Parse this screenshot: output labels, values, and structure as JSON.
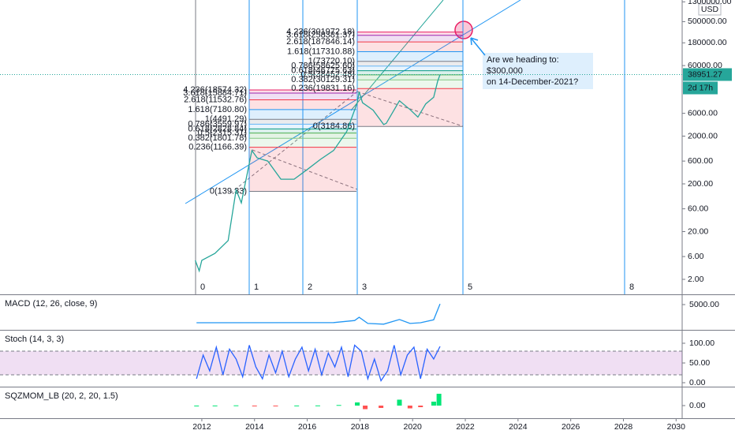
{
  "chart_data": [
    {
      "type": "line",
      "currency": "USD",
      "log_scale": true,
      "color": "#26a69a",
      "x": [
        2011.75,
        2011.9,
        2012.0,
        2012.5,
        2013.0,
        2013.3,
        2013.5,
        2013.9,
        2014.1,
        2014.5,
        2015.0,
        2015.5,
        2016.0,
        2016.5,
        2017.0,
        2017.5,
        2017.9,
        2017.97,
        2018.1,
        2018.5,
        2018.9,
        2019.0,
        2019.5,
        2019.9,
        2020.2,
        2020.5,
        2020.8,
        2020.95,
        2021.04
      ],
      "values": [
        5,
        3,
        5,
        7,
        13,
        150,
        80,
        1000,
        700,
        600,
        250,
        250,
        400,
        650,
        1000,
        2500,
        10000,
        17000,
        10000,
        7000,
        3500,
        3700,
        11000,
        7200,
        5000,
        9500,
        13000,
        28000,
        38951.27
      ],
      "xlim": [
        2004.34,
        2030.23
      ],
      "xticks": [
        2012,
        2014,
        2016,
        2018,
        2020,
        2022,
        2024,
        2026,
        2028,
        2030
      ],
      "ylim": [
        0.97,
        1420000
      ],
      "yticks": [
        {
          "value": 1300000,
          "label": "1300000.00"
        },
        {
          "value": 500000,
          "label": "500000.00"
        },
        {
          "value": 180000,
          "label": "180000.00"
        },
        {
          "value": 60000,
          "label": "60000.00"
        },
        {
          "value": 6000,
          "label": "6000.00"
        },
        {
          "value": 2000,
          "label": "2000.00"
        },
        {
          "value": 600,
          "label": "600.00"
        },
        {
          "value": 200,
          "label": "200.00"
        },
        {
          "value": 60,
          "label": "60.00"
        },
        {
          "value": 20,
          "label": "20.00"
        },
        {
          "value": 6,
          "label": "6.00"
        },
        {
          "value": 2,
          "label": "2.00"
        }
      ],
      "last_price": 38951.27,
      "countdown": "2d 17h",
      "time_zones": [
        0,
        1,
        2,
        3,
        5,
        8
      ],
      "annotation": [
        "Are we heading to:",
        "$300,000",
        "on 14-December-2021?"
      ],
      "fibs": [
        {
          "levels": [
            {
              "value": 18574.32,
              "label": "4.236(18574.32)",
              "color": "#e91e63"
            },
            {
              "value": 15884.71,
              "label": "3.618(15884.71)",
              "color": "#9c27b0"
            },
            {
              "value": 11532.76,
              "label": "2.618(11532.76)",
              "color": "#f23645"
            },
            {
              "value": 7180.8,
              "label": "1.618(7180.80)",
              "color": "#2196f3"
            },
            {
              "value": 4491.29,
              "label": "1(4491.29)",
              "color": "#787b86"
            },
            {
              "value": 3559.97,
              "label": "0.786(3559.97)",
              "color": "#64b5f6"
            },
            {
              "value": 2828.84,
              "label": "0.618(2828.84)",
              "color": "#089981"
            },
            {
              "value": 2315.31,
              "label": "0.5(2315.31)",
              "color": "#4caf50"
            },
            {
              "value": 1801.78,
              "label": "0.382(1801.78)",
              "color": "#81c784"
            },
            {
              "value": 1166.39,
              "label": "0.236(1166.39)",
              "color": "#f23645"
            },
            {
              "value": 139.33,
              "label": "0(139.33)",
              "color": "#787b86"
            }
          ]
        },
        {
          "levels": [
            {
              "value": 301972.18,
              "label": "4.236(301972.18)",
              "color": "#e91e63"
            },
            {
              "value": 258381.37,
              "label": "3.618(258381.37)",
              "color": "#9c27b0"
            },
            {
              "value": 187846.14,
              "label": "2.618(187846.14)",
              "color": "#f23645"
            },
            {
              "value": 117310.88,
              "label": "1.618(117310.88)",
              "color": "#2196f3"
            },
            {
              "value": 73720.1,
              "label": "1(73720.10)",
              "color": "#787b86"
            },
            {
              "value": 58625.6,
              "label": "0.786(58625.60)",
              "color": "#64b5f6"
            },
            {
              "value": 46775.63,
              "label": "0.618(46775.63)",
              "color": "#089981"
            },
            {
              "value": 38452.48,
              "label": "0.5(38452.48)",
              "color": "#4caf50"
            },
            {
              "value": 30129.31,
              "label": "0.382(30129.31)",
              "color": "#81c784"
            },
            {
              "value": 19831.16,
              "label": "0.236(19831.16)",
              "color": "#f23645"
            },
            {
              "value": 3184.86,
              "label": "0(3184.86)",
              "color": "#787b86"
            }
          ]
        }
      ]
    },
    {
      "type": "line",
      "title": "MACD (12, 26, close, 9)",
      "color": "#2196f3",
      "x": [
        2011.8,
        2017.0,
        2017.8,
        2017.97,
        2018.3,
        2018.9,
        2019.5,
        2019.9,
        2020.3,
        2020.8,
        2021.04
      ],
      "values": [
        0,
        50,
        600,
        1500,
        -200,
        -400,
        900,
        -200,
        0,
        800,
        5200
      ],
      "ylim": [
        -1957,
        7826
      ],
      "yticks": [
        {
          "value": 5000,
          "label": "5000.00"
        }
      ]
    },
    {
      "type": "line",
      "title": "Stoch (14, 3, 3)",
      "color": "#2962ff",
      "band": [
        20,
        80
      ],
      "x": [
        2011.8,
        2012.05,
        2012.3,
        2012.55,
        2012.8,
        2013.05,
        2013.3,
        2013.55,
        2013.8,
        2014.05,
        2014.3,
        2014.55,
        2014.8,
        2015.05,
        2015.3,
        2015.55,
        2015.8,
        2016.05,
        2016.3,
        2016.55,
        2016.8,
        2017.05,
        2017.3,
        2017.55,
        2017.8,
        2018.05,
        2018.3,
        2018.55,
        2018.8,
        2019.05,
        2019.3,
        2019.55,
        2019.8,
        2020.05,
        2020.3,
        2020.55,
        2020.8,
        2021.04
      ],
      "values": [
        10,
        70,
        30,
        90,
        20,
        85,
        60,
        15,
        95,
        40,
        10,
        70,
        25,
        80,
        15,
        60,
        90,
        30,
        85,
        20,
        75,
        40,
        90,
        15,
        95,
        80,
        10,
        60,
        5,
        30,
        95,
        20,
        70,
        90,
        10,
        85,
        60,
        92
      ],
      "ylim": [
        -10,
        134
      ],
      "yticks": [
        {
          "value": 100,
          "label": "100.00"
        },
        {
          "value": 50,
          "label": "50.00"
        },
        {
          "value": 0,
          "label": "0.00"
        }
      ]
    },
    {
      "type": "bar",
      "title": "SQZMOM_LB (20, 2, 20, 1.5)",
      "x": [
        2011.8,
        2012.5,
        2013.3,
        2014.0,
        2014.8,
        2015.6,
        2016.4,
        2017.2,
        2017.9,
        2018.2,
        2018.8,
        2019.5,
        2019.9,
        2020.3,
        2020.8,
        2021.0
      ],
      "values": [
        0,
        20,
        60,
        -80,
        -60,
        20,
        40,
        150,
        800,
        -900,
        -600,
        1500,
        -700,
        -400,
        1000,
        3000
      ],
      "ylim": [
        -3200,
        4800
      ],
      "yticks": [
        {
          "value": 0,
          "label": "0.00"
        }
      ]
    }
  ]
}
